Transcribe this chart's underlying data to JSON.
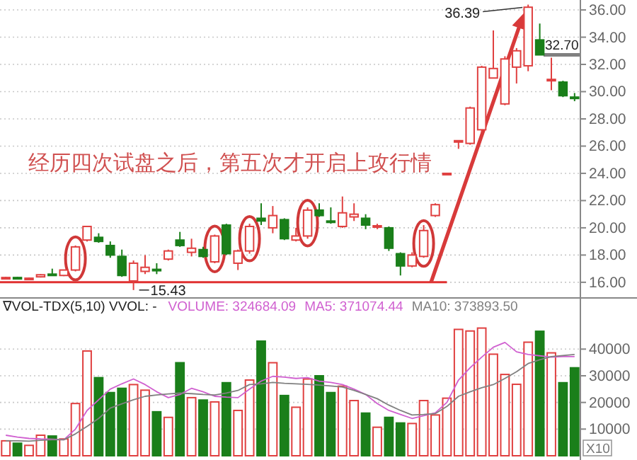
{
  "chart_data": [
    {
      "type": "candlestick",
      "categories": [
        null,
        null,
        null,
        null,
        null,
        null,
        null,
        null,
        null,
        null,
        null,
        null,
        null,
        null,
        null,
        null,
        null,
        null,
        null,
        null,
        null,
        null,
        null,
        null,
        null,
        null,
        null,
        null,
        null,
        null,
        null,
        null,
        null,
        null,
        null,
        null,
        null,
        null,
        null,
        null,
        null,
        null,
        null,
        null,
        null,
        null,
        null,
        null,
        null,
        null
      ],
      "ohlc": [
        [
          16.3,
          16.4,
          16.3,
          16.35
        ],
        [
          16.35,
          16.4,
          16.3,
          16.3
        ],
        [
          16.3,
          16.35,
          16.25,
          16.3
        ],
        [
          16.4,
          16.6,
          16.35,
          16.55
        ],
        [
          16.6,
          17.0,
          16.55,
          16.6
        ],
        [
          16.5,
          16.9,
          16.45,
          16.9
        ],
        [
          16.9,
          18.7,
          16.8,
          18.6
        ],
        [
          19.1,
          20.1,
          19.0,
          20.1
        ],
        [
          19.3,
          19.6,
          18.9,
          19.0
        ],
        [
          18.7,
          19.0,
          17.8,
          18.0
        ],
        [
          17.9,
          18.4,
          16.4,
          16.5
        ],
        [
          16.1,
          17.6,
          15.43,
          17.4
        ],
        [
          16.8,
          18.0,
          16.6,
          17.1
        ],
        [
          16.95,
          17.4,
          16.6,
          16.9
        ],
        [
          17.7,
          18.4,
          17.6,
          18.3
        ],
        [
          19.1,
          19.7,
          18.6,
          18.7
        ],
        [
          18.2,
          19.2,
          17.9,
          18.5
        ],
        [
          18.4,
          18.6,
          17.8,
          17.9
        ],
        [
          17.5,
          19.5,
          17.4,
          19.4
        ],
        [
          20.2,
          20.3,
          18.0,
          18.1
        ],
        [
          17.4,
          18.4,
          16.9,
          18.3
        ],
        [
          18.3,
          20.3,
          18.1,
          20.1
        ],
        [
          20.7,
          21.8,
          20.2,
          20.5
        ],
        [
          20.0,
          21.6,
          19.6,
          20.9
        ],
        [
          20.6,
          20.7,
          19.1,
          19.2
        ],
        [
          19.1,
          20.0,
          19.0,
          19.4
        ],
        [
          19.4,
          21.5,
          19.2,
          21.3
        ],
        [
          21.3,
          21.8,
          20.8,
          20.9
        ],
        [
          20.5,
          21.5,
          20.3,
          20.45
        ],
        [
          20.1,
          22.3,
          20.0,
          21.1
        ],
        [
          20.8,
          21.8,
          20.5,
          21.0
        ],
        [
          20.7,
          21.0,
          19.9,
          20.2
        ],
        [
          20.1,
          20.3,
          19.9,
          20.15
        ],
        [
          20.0,
          20.1,
          18.3,
          18.5
        ],
        [
          18.1,
          18.2,
          16.5,
          17.2
        ],
        [
          17.2,
          18.2,
          17.1,
          18.0
        ],
        [
          17.9,
          20.2,
          17.8,
          19.8
        ],
        [
          20.9,
          21.8,
          20.8,
          21.7
        ],
        [
          24.0,
          24.0,
          24.0,
          24.0
        ],
        [
          26.4,
          26.4,
          25.8,
          26.4
        ],
        [
          26.2,
          28.9,
          26.1,
          28.8
        ],
        [
          27.2,
          31.9,
          27.0,
          31.8
        ],
        [
          31.0,
          34.5,
          31.0,
          31.7
        ],
        [
          29.1,
          32.6,
          29.0,
          32.4
        ],
        [
          31.8,
          33.2,
          30.6,
          33.0
        ],
        [
          31.9,
          36.39,
          31.5,
          36.2
        ],
        [
          33.8,
          35.0,
          32.7,
          32.7
        ],
        [
          30.9,
          32.5,
          30.1,
          30.9
        ],
        [
          30.7,
          30.8,
          29.6,
          29.7
        ],
        [
          29.6,
          29.9,
          29.3,
          29.6
        ]
      ],
      "colors": [
        "#e04040",
        "#1a7f1a",
        "#e04040",
        "#e04040",
        "#1a7f1a",
        "#e04040",
        "#e04040",
        "#e04040",
        "#1a7f1a",
        "#1a7f1a",
        "#1a7f1a",
        "#e04040",
        "#e04040",
        "#1a7f1a",
        "#e04040",
        "#1a7f1a",
        "#e04040",
        "#1a7f1a",
        "#e04040",
        "#1a7f1a",
        "#e04040",
        "#e04040",
        "#1a7f1a",
        "#e04040",
        "#1a7f1a",
        "#e04040",
        "#e04040",
        "#1a7f1a",
        "#1a7f1a",
        "#e04040",
        "#e04040",
        "#1a7f1a",
        "#e04040",
        "#1a7f1a",
        "#1a7f1a",
        "#e04040",
        "#e04040",
        "#e04040",
        "#e04040",
        "#e04040",
        "#e04040",
        "#e04040",
        "#e04040",
        "#e04040",
        "#e04040",
        "#e04040",
        "#1a7f1a",
        "#e04040",
        "#1a7f1a",
        "#1a7f1a"
      ],
      "ylim": [
        14.85,
        36.73
      ],
      "yticks": [
        {
          "value": 16,
          "label": "16.00"
        },
        {
          "value": 18,
          "label": "18.00"
        },
        {
          "value": 20,
          "label": "20.00"
        },
        {
          "value": 22,
          "label": "22.00"
        },
        {
          "value": 24,
          "label": "24.00"
        },
        {
          "value": 26,
          "label": "26.00"
        },
        {
          "value": 28,
          "label": "28.00"
        },
        {
          "value": 30,
          "label": "30.00"
        },
        {
          "value": 32,
          "label": "32.00"
        },
        {
          "value": 34,
          "label": "34.00"
        },
        {
          "value": 36,
          "label": "36.00"
        }
      ],
      "tick_labels": "y",
      "grid": "y",
      "ref_lines": [
        {
          "axis": "y",
          "value": 16,
          "color": "#e03030"
        },
        {
          "axis": "y",
          "value": 32.7,
          "label": "32.70",
          "color": "#808080"
        }
      ],
      "annotations": [
        "经历四次试盘之后，第五次才开启上攻行情",
        "36.39",
        "15.43"
      ]
    },
    {
      "type": "bar",
      "title": "∇VOL-TDX(5,10) VVOL: -",
      "subtitle": "VOLUME: 324684.09",
      "categories": [
        null,
        null,
        null,
        null,
        null,
        null,
        null,
        null,
        null,
        null,
        null,
        null,
        null,
        null,
        null,
        null,
        null,
        null,
        null,
        null,
        null,
        null,
        null,
        null,
        null,
        null,
        null,
        null,
        null,
        null,
        null,
        null,
        null,
        null,
        null,
        null,
        null,
        null,
        null,
        null,
        null,
        null,
        null,
        null,
        null,
        null,
        null,
        null,
        null,
        null
      ],
      "series": [
        {
          "colors": [
            "#e04040",
            "#1a7f1a",
            "#e04040",
            "#e04040",
            "#1a7f1a",
            "#e04040",
            "#e04040",
            "#e04040",
            "#1a7f1a",
            "#1a7f1a",
            "#1a7f1a",
            "#e04040",
            "#e04040",
            "#1a7f1a",
            "#e04040",
            "#1a7f1a",
            "#e04040",
            "#1a7f1a",
            "#e04040",
            "#1a7f1a",
            "#e04040",
            "#e04040",
            "#1a7f1a",
            "#e04040",
            "#1a7f1a",
            "#e04040",
            "#e04040",
            "#1a7f1a",
            "#1a7f1a",
            "#e04040",
            "#e04040",
            "#1a7f1a",
            "#e04040",
            "#1a7f1a",
            "#1a7f1a",
            "#e04040",
            "#e04040",
            "#e04040",
            "#e04040",
            "#e04040",
            "#e04040",
            "#e04040",
            "#e04040",
            "#e04040",
            "#e04040",
            "#e04040",
            "#1a7f1a",
            "#e04040",
            "#1a7f1a",
            "#1a7f1a"
          ],
          "values": [
            5600,
            4700,
            3900,
            7700,
            7400,
            6300,
            19600,
            39300,
            29300,
            23700,
            25300,
            26700,
            24600,
            16500,
            14400,
            34900,
            21800,
            20900,
            20200,
            27400,
            17000,
            28400,
            43000,
            34900,
            22600,
            18200,
            28800,
            30000,
            23700,
            26100,
            20700,
            16000,
            10700,
            14400,
            12300,
            12100,
            20700,
            15300,
            21600,
            47400,
            46800,
            47900,
            38100,
            30500,
            26800,
            42600,
            46700,
            38600,
            27400,
            33000
          ]
        },
        {
          "type": "line",
          "name": "MA5: 371074.44",
          "color": "#d060d0",
          "values": [
            7700,
            7000,
            6500,
            6300,
            6200,
            6000,
            10000,
            17000,
            21000,
            25000,
            27000,
            28800,
            26700,
            24000,
            21800,
            23000,
            25300,
            24000,
            22300,
            22000,
            21800,
            25000,
            28000,
            29800,
            29500,
            29000,
            29300,
            28000,
            27500,
            26700,
            25000,
            23000,
            19600,
            17000,
            15500,
            14000,
            15000,
            16100,
            20000,
            28400,
            33000,
            37000,
            40700,
            42500,
            39000,
            38000,
            37500,
            37000,
            37200,
            37200
          ]
        },
        {
          "type": "line",
          "name": "MA10: 373893.50",
          "color": "#808080",
          "values": [
            5600,
            5600,
            5500,
            5800,
            6000,
            6000,
            8200,
            11000,
            14000,
            17900,
            19500,
            21000,
            22300,
            22800,
            23200,
            23500,
            23300,
            23000,
            22800,
            23500,
            24500,
            26700,
            27000,
            27500,
            27200,
            27000,
            26800,
            26500,
            26200,
            25800,
            24500,
            23000,
            21400,
            19000,
            17000,
            15300,
            15500,
            15800,
            18500,
            22300,
            24000,
            25500,
            26700,
            29000,
            31500,
            34600,
            36000,
            37200,
            37600,
            38000
          ]
        }
      ],
      "ylim": [
        0,
        59200
      ],
      "yticks": [
        10000,
        20000,
        30000,
        40000
      ],
      "ylabel": "X10",
      "tick_labels": "y",
      "grid": "y",
      "legend": "top"
    }
  ]
}
